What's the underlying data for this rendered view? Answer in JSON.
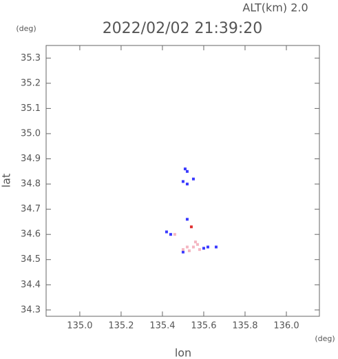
{
  "chart_data": {
    "type": "scatter",
    "annotation": "ALT(km) 2.0",
    "title": "2022/02/02 21:39:20",
    "y_unit": "(deg)",
    "x_unit": "(deg)",
    "xlabel": "lon",
    "ylabel": "lat",
    "xlim": [
      134.837,
      136.16
    ],
    "ylim": [
      34.275,
      35.35
    ],
    "xticks": [
      {
        "value": 135,
        "label": "135.0"
      },
      135.2,
      135.4,
      135.6,
      135.8,
      {
        "value": 136,
        "label": "136.0"
      }
    ],
    "yticks": [
      34.3,
      34.4,
      34.5,
      34.6,
      34.7,
      34.8,
      34.9,
      {
        "value": 35,
        "label": "35.0"
      },
      35.1,
      35.2,
      35.3
    ],
    "series": [
      {
        "color": "#3a3aff",
        "x": [
          135.51,
          135.52,
          135.5,
          135.52,
          135.55,
          135.52,
          135.44,
          135.42,
          135.62,
          135.66,
          135.5,
          135.6
        ],
        "y": [
          34.86,
          34.85,
          34.81,
          34.8,
          34.82,
          34.66,
          34.6,
          34.61,
          34.55,
          34.55,
          34.53,
          34.545
        ]
      },
      {
        "color": "#f4b6c2",
        "x": [
          135.55,
          135.56,
          135.5,
          135.58,
          135.46,
          135.53,
          135.52,
          135.57
        ],
        "y": [
          34.55,
          34.57,
          34.54,
          34.54,
          34.6,
          34.535,
          34.55,
          34.56
        ]
      },
      {
        "color": "#e03030",
        "x": [
          135.54
        ],
        "y": [
          34.63
        ]
      }
    ]
  }
}
